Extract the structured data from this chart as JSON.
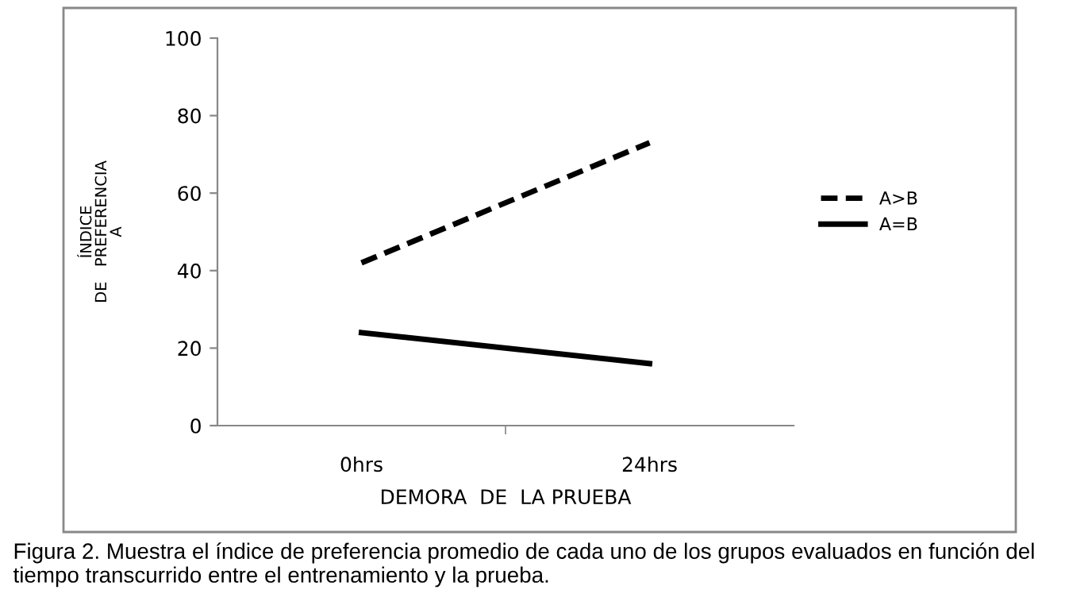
{
  "chart_data": {
    "type": "line",
    "xlabel": "DEMORA  DE  LA PRUEBA",
    "ylabel": "ÍNDICE\nDE   PREFERENCIA\nA",
    "categories": [
      "0hrs",
      "24hrs"
    ],
    "series": [
      {
        "name": "A>B",
        "color": "#000000",
        "values": [
          42,
          73
        ],
        "line_style": "dashed"
      },
      {
        "name": "A=B",
        "color": "#000000",
        "values": [
          24,
          16
        ],
        "line_style": "solid"
      }
    ],
    "ylim": [
      0,
      100
    ],
    "yticks": [
      0,
      20,
      40,
      60,
      80,
      100
    ],
    "grid": false,
    "legend": "right",
    "marker": "none",
    "annotations": [
      "Figura 2. Muestra el índice de preferencia promedio de cada uno de los grupos evaluados en función del tiempo transcurrido entre el entrenamiento y la prueba."
    ]
  }
}
